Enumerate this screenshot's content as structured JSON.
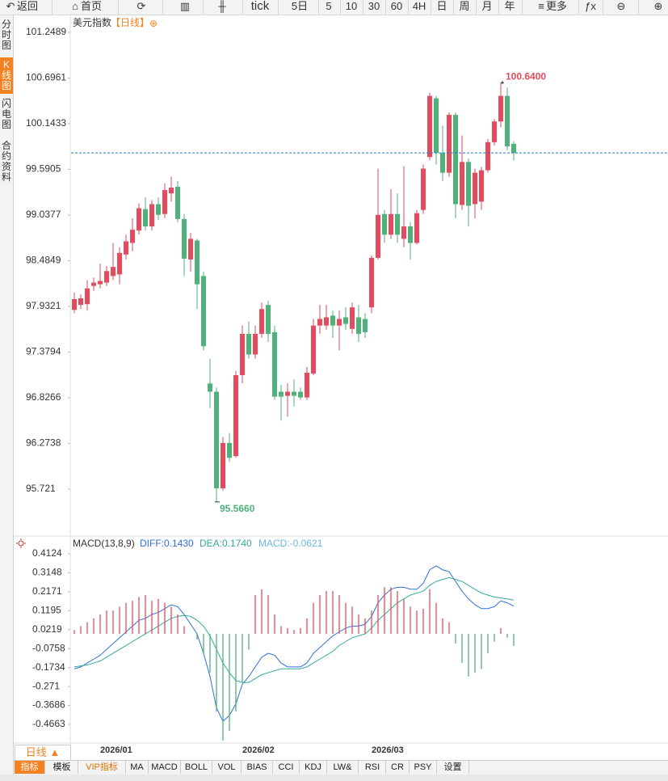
{
  "toolbar": [
    "返回",
    "首页",
    "tick",
    "5日",
    "5",
    "10",
    "30",
    "60",
    "4H",
    "日",
    "周",
    "月",
    "年",
    "更多"
  ],
  "sidebar": [
    "分时图",
    "K线图",
    "闪电图",
    "合约资料"
  ],
  "period_tab": "日线 ▲",
  "indicator_tabs": [
    "指标",
    "模板",
    "VIP指标",
    "MA",
    "MACD",
    "BOLL",
    "VOL",
    "BIAS",
    "CCI",
    "KDJ",
    "LW&",
    "RSI",
    "CR",
    "PSY",
    "设置"
  ],
  "chart_data": [
    {
      "type": "candlestick",
      "title": "美元指数",
      "subtitle": "【日线】",
      "up_color": "#e64a5c",
      "down_color": "#4fb27b",
      "ylim": [
        95.163,
        101.425
      ],
      "yticks": [
        101.2489,
        100.6961,
        100.1433,
        99.5905,
        99.0377,
        98.4849,
        97.9321,
        97.3794,
        96.8266,
        96.2738,
        95.721
      ],
      "categories": [
        null,
        null,
        null,
        null,
        "2026/01",
        null,
        null,
        null,
        null,
        null,
        null,
        null,
        null,
        null,
        null,
        null,
        null,
        null,
        null,
        null,
        null,
        null,
        null,
        null,
        null,
        null,
        "2026/02",
        null,
        null,
        null,
        null,
        null,
        null,
        null,
        null,
        null,
        null,
        null,
        null,
        null,
        null,
        null,
        null,
        null,
        null,
        null,
        "2026/03",
        null,
        null,
        null,
        null,
        null,
        null,
        null,
        null,
        null,
        null,
        null,
        null,
        null,
        null,
        null,
        null,
        null,
        null,
        null,
        null,
        null,
        null
      ],
      "open": [
        97.89,
        97.95,
        97.96,
        98.18,
        98.2,
        98.22,
        98.3,
        98.32,
        98.56,
        98.7,
        98.85,
        99.11,
        98.9,
        99.17,
        99.05,
        99.3,
        99.38,
        98.99,
        98.5,
        98.73,
        98.3,
        97.0,
        96.9,
        95.73,
        96.28,
        96.12,
        97.1,
        97.6,
        97.35,
        97.6,
        97.95,
        97.62,
        96.9,
        96.85,
        96.9,
        96.9,
        96.83,
        97.12,
        97.7,
        97.7,
        97.82,
        97.7,
        97.8,
        97.66,
        97.8,
        97.78,
        97.92,
        98.52,
        99.05,
        98.8,
        99.05,
        98.75,
        98.9,
        98.7,
        99.1,
        99.74,
        100.45,
        99.79,
        99.55,
        100.25,
        99.16,
        99.68,
        99.17,
        99.2,
        99.58,
        99.92,
        100.17,
        100.48,
        99.9
      ],
      "high": [
        98.1,
        98.08,
        98.25,
        98.28,
        98.45,
        98.42,
        98.7,
        98.65,
        98.8,
        99.0,
        99.18,
        99.25,
        99.22,
        99.25,
        99.42,
        99.5,
        99.45,
        99.05,
        98.82,
        98.75,
        98.35,
        97.3,
        96.95,
        96.35,
        96.4,
        97.15,
        97.7,
        97.75,
        97.7,
        97.98,
        98.0,
        97.7,
        96.98,
        97.0,
        97.05,
        96.95,
        97.2,
        97.78,
        97.95,
        97.95,
        97.88,
        97.88,
        97.92,
        97.98,
        97.95,
        97.85,
        98.55,
        99.6,
        99.1,
        99.35,
        99.3,
        99.63,
        98.95,
        99.1,
        99.65,
        100.52,
        100.48,
        100.12,
        100.28,
        100.28,
        100.0,
        99.72,
        99.6,
        99.62,
        99.96,
        100.2,
        100.64,
        100.58,
        99.93
      ],
      "low": [
        97.85,
        97.9,
        97.88,
        98.12,
        98.15,
        98.18,
        98.25,
        98.2,
        98.5,
        98.6,
        98.8,
        98.85,
        98.85,
        98.98,
        99.0,
        99.2,
        98.95,
        98.3,
        98.35,
        97.9,
        97.4,
        96.7,
        95.566,
        95.7,
        96.05,
        96.1,
        97.0,
        97.3,
        97.3,
        97.55,
        97.5,
        96.8,
        96.55,
        96.6,
        96.72,
        96.8,
        96.8,
        97.1,
        97.6,
        97.65,
        97.55,
        97.4,
        97.65,
        97.6,
        97.5,
        97.55,
        97.85,
        98.5,
        98.7,
        98.75,
        98.7,
        98.65,
        98.5,
        98.68,
        99.05,
        99.7,
        99.65,
        99.45,
        99.5,
        99.0,
        99.1,
        98.9,
        99.0,
        99.1,
        99.55,
        99.88,
        100.1,
        99.82,
        99.7
      ],
      "close": [
        98.02,
        98.03,
        98.15,
        98.22,
        98.24,
        98.36,
        98.41,
        98.58,
        98.72,
        98.86,
        99.12,
        98.9,
        99.17,
        99.04,
        99.34,
        99.37,
        98.99,
        98.51,
        98.75,
        98.2,
        97.45,
        96.9,
        95.73,
        96.28,
        96.1,
        97.1,
        97.6,
        97.35,
        97.6,
        97.9,
        97.6,
        96.84,
        96.84,
        96.9,
        96.85,
        96.83,
        97.13,
        97.7,
        97.78,
        97.8,
        97.7,
        97.78,
        97.72,
        97.92,
        97.6,
        97.62,
        98.52,
        99.04,
        98.8,
        99.05,
        98.8,
        98.9,
        98.7,
        99.06,
        99.6,
        100.48,
        99.79,
        99.55,
        100.25,
        99.17,
        99.68,
        99.15,
        99.55,
        99.58,
        99.92,
        100.17,
        100.48,
        99.87,
        99.79
      ],
      "max_label": {
        "value": 100.64,
        "label": "100.6400"
      },
      "min_label": {
        "value": 95.566,
        "label": "95.5660"
      }
    },
    {
      "type": "macd",
      "title": "MACD(13,8,9)",
      "ylim": [
        -0.5577,
        0.4996
      ],
      "yticks": [
        0.4124,
        0.3148,
        0.2171,
        0.1195,
        0.0219,
        -0.0758,
        -0.1734,
        -0.271,
        -0.3686,
        -0.4663
      ],
      "series": [
        {
          "label": "DIFF:0.1430",
          "color": "#2f6fd8",
          "values": [
            -0.18,
            -0.17,
            -0.15,
            -0.13,
            -0.11,
            -0.08,
            -0.05,
            -0.02,
            0.01,
            0.04,
            0.07,
            0.08,
            0.1,
            0.11,
            0.13,
            0.15,
            0.14,
            0.1,
            0.05,
            0.0,
            -0.1,
            -0.22,
            -0.38,
            -0.45,
            -0.42,
            -0.36,
            -0.26,
            -0.22,
            -0.17,
            -0.12,
            -0.1,
            -0.11,
            -0.15,
            -0.17,
            -0.17,
            -0.17,
            -0.15,
            -0.1,
            -0.07,
            -0.04,
            -0.01,
            0.01,
            0.03,
            0.04,
            0.04,
            0.05,
            0.09,
            0.16,
            0.2,
            0.23,
            0.24,
            0.24,
            0.23,
            0.23,
            0.26,
            0.33,
            0.35,
            0.33,
            0.32,
            0.27,
            0.22,
            0.18,
            0.15,
            0.13,
            0.13,
            0.14,
            0.17,
            0.16,
            0.143
          ]
        },
        {
          "label": "DEA:0.1740",
          "color": "#36a99a",
          "values": [
            -0.17,
            -0.165,
            -0.16,
            -0.15,
            -0.14,
            -0.12,
            -0.1,
            -0.08,
            -0.06,
            -0.04,
            -0.02,
            0.0,
            0.02,
            0.04,
            0.06,
            0.08,
            0.09,
            0.095,
            0.09,
            0.07,
            0.04,
            -0.01,
            -0.08,
            -0.15,
            -0.2,
            -0.24,
            -0.25,
            -0.25,
            -0.23,
            -0.21,
            -0.2,
            -0.19,
            -0.18,
            -0.18,
            -0.18,
            -0.18,
            -0.17,
            -0.15,
            -0.13,
            -0.11,
            -0.09,
            -0.06,
            -0.04,
            -0.02,
            -0.01,
            0.0,
            0.03,
            0.07,
            0.1,
            0.13,
            0.16,
            0.18,
            0.2,
            0.21,
            0.22,
            0.25,
            0.27,
            0.28,
            0.29,
            0.28,
            0.27,
            0.25,
            0.23,
            0.21,
            0.2,
            0.19,
            0.185,
            0.18,
            0.174
          ]
        },
        {
          "label": "MACD:-0.0621",
          "color": "#6cb8e6",
          "up_color": "#e64a5c",
          "down_color": "#4fb27b",
          "values": [
            0.02,
            0.04,
            0.06,
            0.08,
            0.1,
            0.12,
            0.12,
            0.14,
            0.16,
            0.17,
            0.19,
            0.2,
            0.17,
            0.18,
            0.16,
            0.14,
            0.1,
            0.04,
            0.0,
            -0.03,
            -0.1,
            -0.2,
            -0.4,
            -0.55,
            -0.5,
            -0.4,
            -0.25,
            -0.08,
            0.2,
            0.23,
            0.2,
            0.1,
            0.04,
            0.03,
            0.02,
            0.03,
            0.08,
            0.16,
            0.2,
            0.22,
            0.22,
            0.2,
            0.16,
            0.14,
            0.1,
            0.08,
            0.12,
            0.2,
            0.24,
            0.24,
            0.22,
            0.18,
            0.14,
            0.12,
            0.13,
            0.23,
            0.16,
            0.08,
            0.06,
            -0.05,
            -0.15,
            -0.22,
            -0.2,
            -0.18,
            -0.1,
            -0.04,
            0.03,
            -0.02,
            -0.0621
          ]
        }
      ]
    }
  ]
}
